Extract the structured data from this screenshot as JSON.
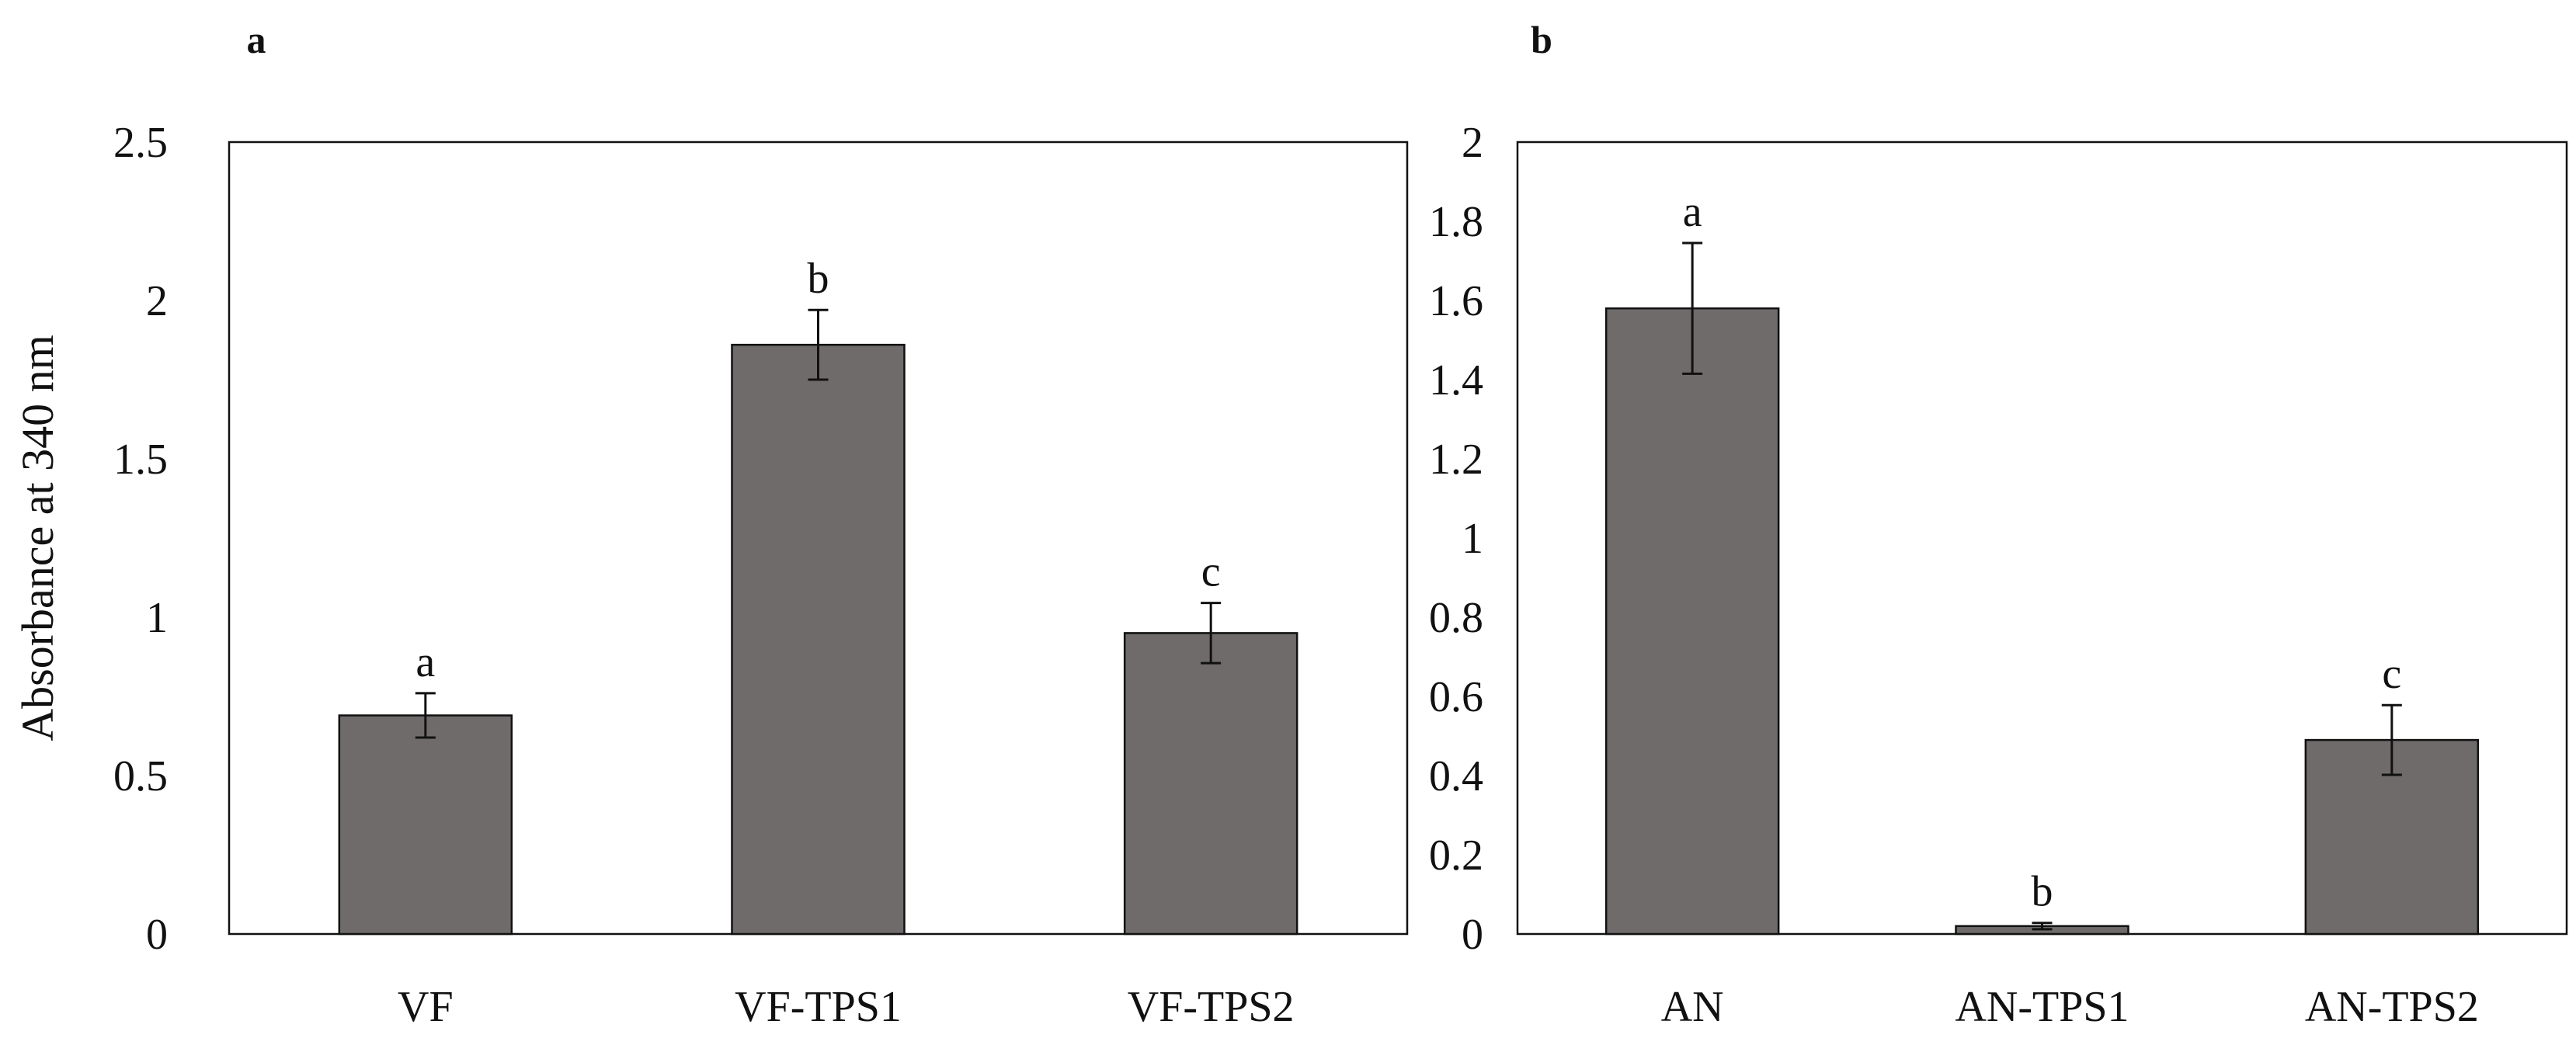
{
  "chart_data": [
    {
      "panel": "a",
      "type": "bar",
      "ylabel": "Absorbance at 340 nm",
      "ylim": [
        0,
        2.5
      ],
      "yticks": [
        "0",
        "0.5",
        "1",
        "1.5",
        "2",
        "2.5"
      ],
      "ytick_values": [
        0,
        0.5,
        1,
        1.5,
        2,
        2.5
      ],
      "categories": [
        "VF",
        "VF-TPS1",
        "VF-TPS2"
      ],
      "values": [
        0.69,
        1.86,
        0.95
      ],
      "errors": [
        0.07,
        0.11,
        0.095
      ],
      "letters": [
        "a",
        "b",
        "c"
      ],
      "bar_color": "#6f6b6b",
      "grid": false
    },
    {
      "panel": "b",
      "type": "bar",
      "ylabel": "",
      "ylim": [
        0,
        2
      ],
      "yticks": [
        "0",
        "0.2",
        "0.4",
        "0.6",
        "0.8",
        "1",
        "1.2",
        "1.4",
        "1.6",
        "1.8",
        "2"
      ],
      "ytick_values": [
        0,
        0.2,
        0.4,
        0.6,
        0.8,
        1,
        1.2,
        1.4,
        1.6,
        1.8,
        2
      ],
      "categories": [
        "AN",
        "AN-TPS1",
        "AN-TPS2"
      ],
      "values": [
        1.58,
        0.02,
        0.49
      ],
      "errors": [
        0.165,
        0.008,
        0.088
      ],
      "letters": [
        "a",
        "b",
        "c"
      ],
      "bar_color": "#6f6b6b",
      "grid": false
    }
  ]
}
